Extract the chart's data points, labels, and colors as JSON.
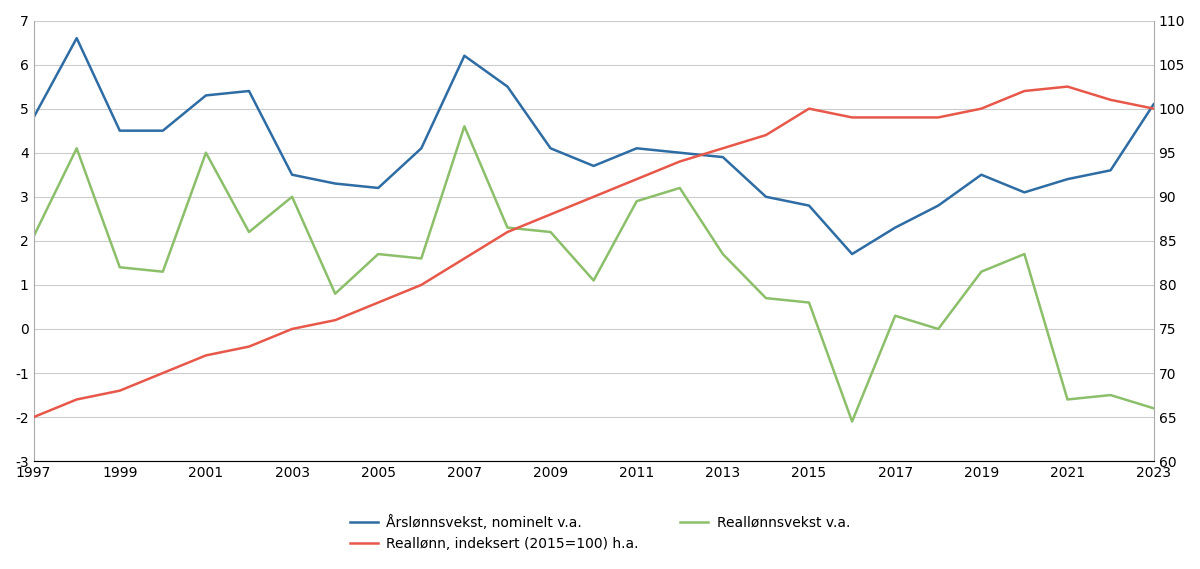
{
  "years": [
    1997,
    1998,
    1999,
    2000,
    2001,
    2002,
    2003,
    2004,
    2005,
    2006,
    2007,
    2008,
    2009,
    2010,
    2011,
    2012,
    2013,
    2014,
    2015,
    2016,
    2017,
    2018,
    2019,
    2020,
    2021,
    2022,
    2023
  ],
  "nominal_wage_growth": [
    4.8,
    6.6,
    4.5,
    4.5,
    5.3,
    5.4,
    3.5,
    3.3,
    3.2,
    4.1,
    6.2,
    5.5,
    4.1,
    3.7,
    4.1,
    4.0,
    3.9,
    3.0,
    2.8,
    1.7,
    2.3,
    2.8,
    3.5,
    3.1,
    3.4,
    3.6,
    5.1
  ],
  "real_wage_growth": [
    2.1,
    4.1,
    1.4,
    1.3,
    4.0,
    2.2,
    3.0,
    0.8,
    1.7,
    1.6,
    4.6,
    2.3,
    2.2,
    1.1,
    2.9,
    3.2,
    1.7,
    0.7,
    0.6,
    -2.1,
    0.3,
    0.0,
    1.3,
    1.7,
    -1.6,
    -1.5,
    -1.8
  ],
  "real_wage_index": [
    65.0,
    67.0,
    68.0,
    70.0,
    72.0,
    73.0,
    75.0,
    76.0,
    78.0,
    80.0,
    83.0,
    86.0,
    88.0,
    90.0,
    92.0,
    94.0,
    95.5,
    97.0,
    100.0,
    99.0,
    99.0,
    99.0,
    100.0,
    102.0,
    102.5,
    101.0,
    100.0
  ],
  "nominal_color": "#2e6ca4",
  "real_index_color": "#e8584a",
  "real_growth_color": "#8cbf6a",
  "left_ylim": [
    -3,
    7
  ],
  "left_yticks": [
    -3,
    -2,
    -1,
    0,
    1,
    2,
    3,
    4,
    5,
    6,
    7
  ],
  "right_ylim": [
    60,
    110
  ],
  "right_yticks": [
    60,
    65,
    70,
    75,
    80,
    85,
    90,
    95,
    100,
    105,
    110
  ],
  "xlabel_ticks": [
    1997,
    1999,
    2001,
    2003,
    2005,
    2007,
    2009,
    2011,
    2013,
    2015,
    2017,
    2019,
    2021,
    2023
  ],
  "legend_nominal": "Årslønnsvekst, nominelt v.a.",
  "legend_real_index": "Reallønn, indeksert (2015=100) h.a.",
  "legend_real_growth": "Reallønnsvekst v.a.",
  "line_width": 1.8,
  "grid_color": "#cccccc",
  "background_color": "#ffffff"
}
